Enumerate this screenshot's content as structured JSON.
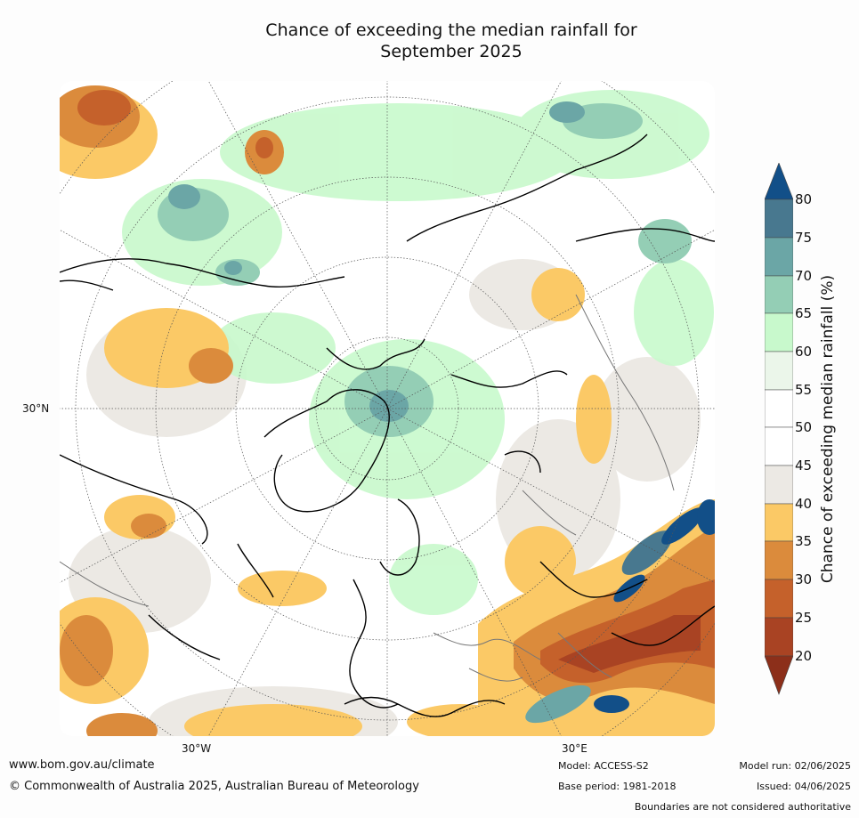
{
  "title_line1": "Chance of exceeding the median rainfall for",
  "title_line2": "September 2025",
  "map": {
    "lat_label": "30°N",
    "lon_labels": [
      "30°W",
      "30°E"
    ]
  },
  "colorbar": {
    "label": "Chance of exceeding median rainfall (%)",
    "ticks": [
      "80",
      "75",
      "70",
      "65",
      "60",
      "55",
      "50",
      "45",
      "40",
      "35",
      "30",
      "25",
      "20"
    ],
    "colors": [
      "#8c2f1a",
      "#a94323",
      "#c5612b",
      "#db8b3c",
      "#fbc966",
      "#ece9e4",
      "#ffffff",
      "#ffffff",
      "#ebf6ea",
      "#c8f9cc",
      "#94ceb5",
      "#6ba6a6",
      "#48788f",
      "#124f88"
    ]
  },
  "footer": {
    "website": "www.bom.gov.au/climate",
    "copyright": "© Commonwealth of Australia 2025, Australian Bureau of Meteorology",
    "model": "Model: ACCESS-S2",
    "base_period": "Base period: 1981-2018",
    "model_run": "Model run: 02/06/2025",
    "issued": "Issued: 04/06/2025",
    "disclaimer": "Boundaries are not considered authoritative"
  }
}
